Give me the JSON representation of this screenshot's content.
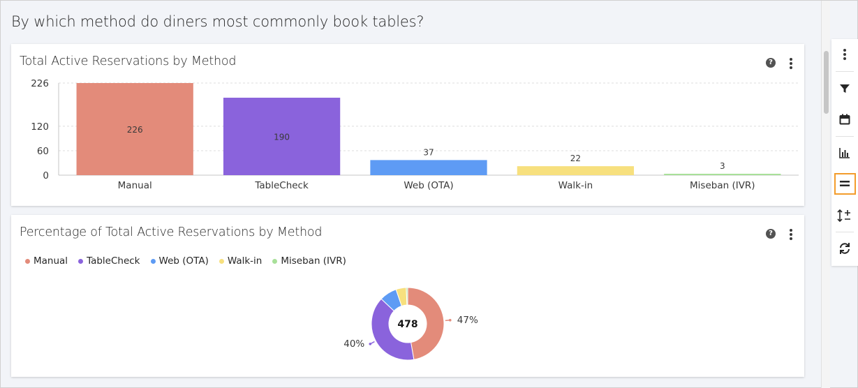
{
  "page": {
    "title": "By which method do diners most commonly book tables?"
  },
  "bar_card": {
    "title": "Total Active Reservations by Method",
    "help_icon": "question-circle-icon",
    "menu_icon": "overflow-menu-icon"
  },
  "donut_card": {
    "title": "Percentage of Total Active Reservations by Method",
    "help_icon": "question-circle-icon",
    "menu_icon": "overflow-menu-icon",
    "center_total": "478",
    "pct_labels": [
      "47%",
      "40%"
    ]
  },
  "toolbar": {
    "items": [
      "overflow-menu-vertical-icon",
      "filter-icon",
      "calendar-icon",
      "bar-chart-icon",
      "equals-icon",
      "sort-plus-minus-icon",
      "refresh-icon"
    ],
    "active_item": "equals-icon",
    "active_color": "#f39c2b"
  },
  "colors": {
    "Manual": "#e38b7a",
    "TableCheck": "#8a63dc",
    "Web (OTA)": "#5e9bf4",
    "Walk-in": "#f7e07e",
    "Miseban (IVR)": "#a8e099"
  },
  "chart_data": [
    {
      "type": "bar",
      "title": "Total Active Reservations by Method",
      "categories": [
        "Manual",
        "TableCheck",
        "Web (OTA)",
        "Walk-in",
        "Miseban (IVR)"
      ],
      "values": [
        226,
        190,
        37,
        22,
        3
      ],
      "y_ticks": [
        0,
        60,
        120,
        226
      ],
      "ylim": [
        0,
        226
      ],
      "grid": true,
      "data_labels": [
        "226",
        "190",
        "37",
        "22",
        "3"
      ]
    },
    {
      "type": "pie",
      "title": "Percentage of Total Active Reservations by Method",
      "donut": true,
      "total": 478,
      "categories": [
        "Manual",
        "TableCheck",
        "Web (OTA)",
        "Walk-in",
        "Miseban (IVR)"
      ],
      "values": [
        226,
        190,
        37,
        22,
        3
      ],
      "legend_position": "top-left"
    }
  ]
}
